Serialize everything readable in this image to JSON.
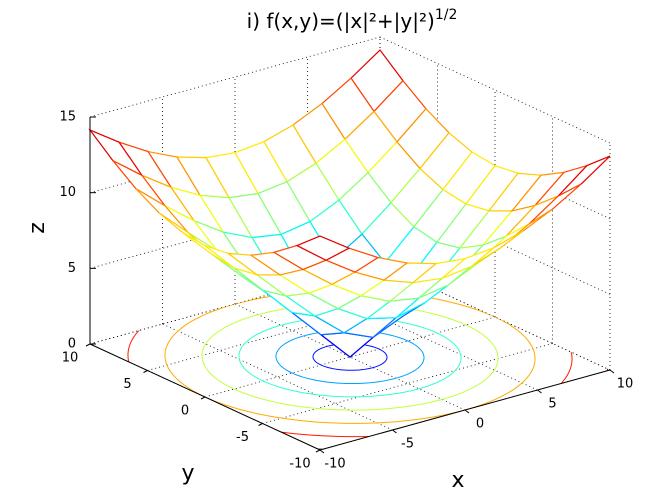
{
  "chart_data": {
    "type": "mesh-contour",
    "title": "i)  f(x,y)=(|x|²+|y|²)",
    "title_exponent": "1/2",
    "xlabel": "x",
    "ylabel": "y",
    "zlabel": "z",
    "x": [
      -10,
      -8,
      -6,
      -4,
      -2,
      0,
      2,
      4,
      6,
      8,
      10
    ],
    "y": [
      -10,
      -8,
      -6,
      -4,
      -2,
      0,
      2,
      4,
      6,
      8,
      10
    ],
    "z": [
      [
        14.14,
        12.81,
        11.66,
        10.77,
        10.2,
        10,
        10.2,
        10.77,
        11.66,
        12.81,
        14.14
      ],
      [
        12.81,
        11.31,
        10,
        8.94,
        8.25,
        8,
        8.25,
        8.94,
        10,
        11.31,
        12.81
      ],
      [
        11.66,
        10,
        8.49,
        7.21,
        6.32,
        6,
        6.32,
        7.21,
        8.49,
        10,
        11.66
      ],
      [
        10.77,
        8.94,
        7.21,
        5.66,
        4.47,
        4,
        4.47,
        5.66,
        7.21,
        8.94,
        10.77
      ],
      [
        10.2,
        8.25,
        6.32,
        4.47,
        2.83,
        2,
        2.83,
        4.47,
        6.32,
        8.25,
        10.2
      ],
      [
        10,
        8,
        6,
        4,
        2,
        0,
        2,
        4,
        6,
        8,
        10
      ],
      [
        10.2,
        8.25,
        6.32,
        4.47,
        2.83,
        2,
        2.83,
        4.47,
        6.32,
        8.25,
        10.2
      ],
      [
        10.77,
        8.94,
        7.21,
        5.66,
        4.47,
        4,
        4.47,
        5.66,
        7.21,
        8.94,
        10.77
      ],
      [
        11.66,
        10,
        8.49,
        7.21,
        6.32,
        6,
        6.32,
        7.21,
        8.49,
        10,
        11.66
      ],
      [
        12.81,
        11.31,
        10,
        8.94,
        8.25,
        8,
        8.25,
        8.94,
        10,
        11.31,
        12.81
      ],
      [
        14.14,
        12.81,
        11.66,
        10.77,
        10.2,
        10,
        10.2,
        10.77,
        11.66,
        12.81,
        14.14
      ]
    ],
    "contour_levels": [
      2,
      4,
      6,
      8,
      10,
      12,
      14
    ],
    "colormap": "jet",
    "xlim": [
      -10,
      10
    ],
    "ylim": [
      -10,
      10
    ],
    "zlim": [
      0,
      15
    ],
    "xticks": [
      -10,
      -5,
      0,
      5,
      10
    ],
    "yticks": [
      -10,
      -5,
      0,
      5,
      10
    ],
    "zticks": [
      0,
      5,
      10,
      15
    ],
    "grid": true
  }
}
